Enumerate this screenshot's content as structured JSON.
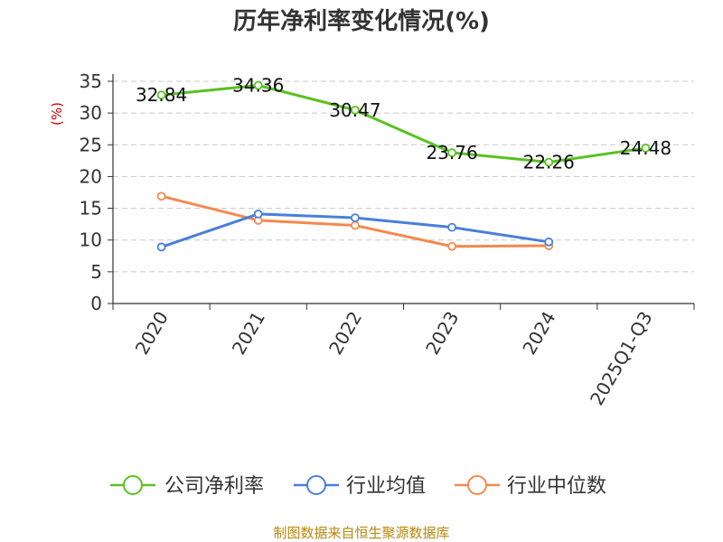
{
  "chart_data": {
    "type": "line",
    "title": "历年净利率变化情况(%)",
    "ylabel": "(%)",
    "categories": [
      "2020",
      "2021",
      "2022",
      "2023",
      "2024",
      "2025Q1-Q3"
    ],
    "yticks": [
      "0",
      "5",
      "10",
      "15",
      "20",
      "25",
      "30",
      "35"
    ],
    "ylim": [
      0,
      35
    ],
    "grid": true,
    "legend_position": "bottom",
    "series": [
      {
        "name": "公司净利率",
        "color": "#5ac121",
        "values": [
          32.84,
          34.36,
          30.47,
          23.76,
          22.26,
          24.48
        ],
        "labels": [
          "32.84",
          "34.36",
          "30.47",
          "23.76",
          "22.26",
          "24.48"
        ]
      },
      {
        "name": "行业均值",
        "color": "#4a7fd9",
        "values": [
          8.9,
          14.1,
          13.5,
          12.0,
          9.7,
          null
        ]
      },
      {
        "name": "行业中位数",
        "color": "#f5894f",
        "values": [
          16.9,
          13.1,
          12.3,
          9.0,
          9.1,
          null
        ]
      }
    ]
  },
  "source_note": "制图数据来自恒生聚源数据库"
}
